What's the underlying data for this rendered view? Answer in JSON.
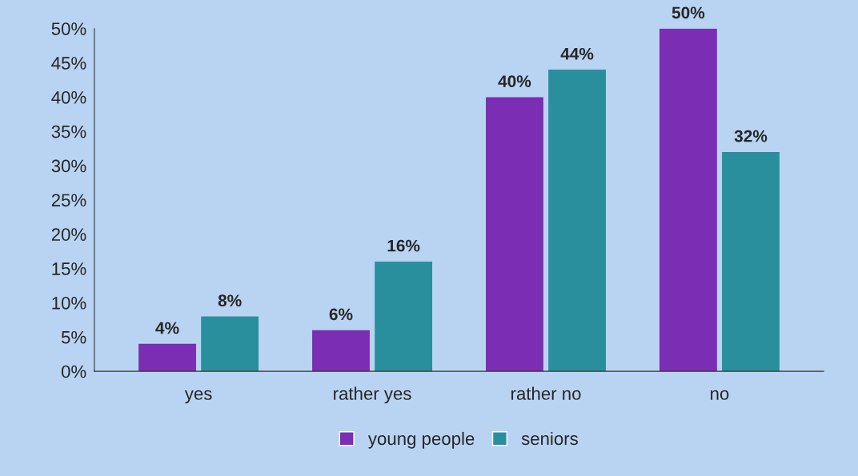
{
  "chart_data": {
    "type": "bar",
    "categories": [
      "yes",
      "rather yes",
      "rather no",
      "no"
    ],
    "series": [
      {
        "name": "young people",
        "color": "#7b2db3",
        "values": [
          4,
          6,
          40,
          50
        ],
        "value_labels": [
          "4%",
          "6%",
          "40%",
          "50%"
        ]
      },
      {
        "name": "seniors",
        "color": "#2a8f9c",
        "values": [
          8,
          16,
          44,
          32
        ],
        "value_labels": [
          "8%",
          "16%",
          "44%",
          "32%"
        ]
      }
    ],
    "ylim": [
      0,
      50
    ],
    "yticks": [
      {
        "value": 0,
        "label": "0%"
      },
      {
        "value": 5,
        "label": "5%"
      },
      {
        "value": 10,
        "label": "10%"
      },
      {
        "value": 15,
        "label": "15%"
      },
      {
        "value": 20,
        "label": "20%"
      },
      {
        "value": 25,
        "label": "25%"
      },
      {
        "value": 30,
        "label": "30%"
      },
      {
        "value": 35,
        "label": "35%"
      },
      {
        "value": 40,
        "label": "40%"
      },
      {
        "value": 45,
        "label": "45%"
      },
      {
        "value": 50,
        "label": "50%"
      }
    ],
    "grid": false,
    "legend": "bottom"
  }
}
